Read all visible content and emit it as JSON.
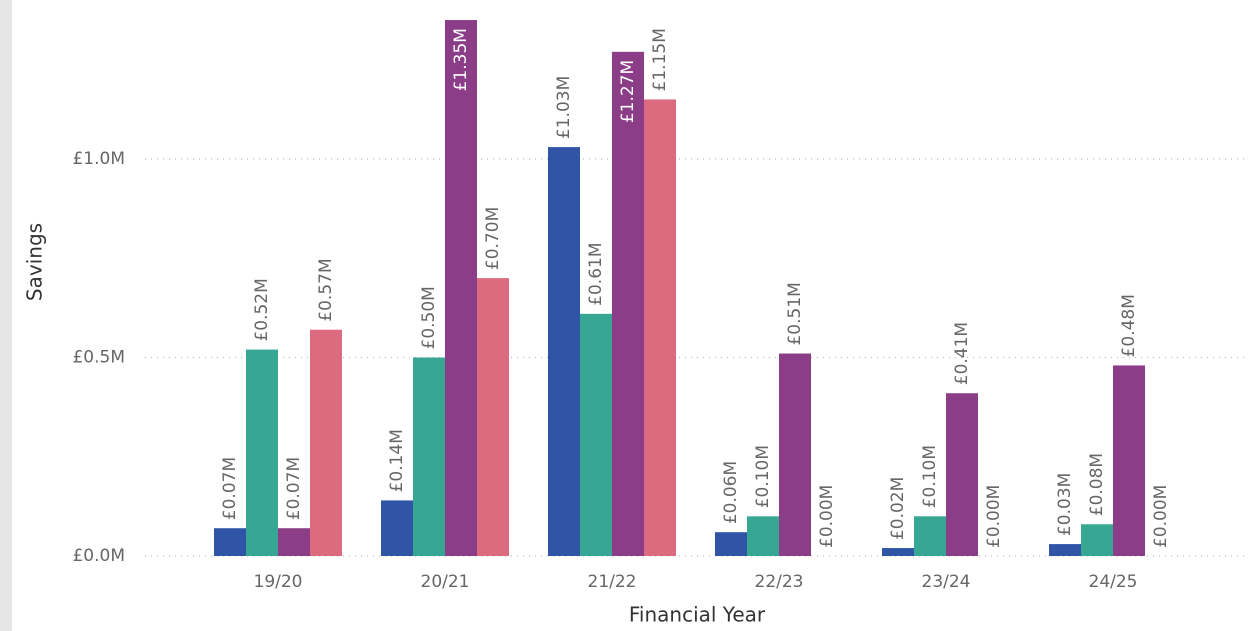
{
  "chart_data": {
    "type": "bar",
    "x_label": "Financial Year",
    "y_label": "Savings",
    "categories": [
      "19/20",
      "20/21",
      "21/22",
      "22/23",
      "23/24",
      "24/25"
    ],
    "series": [
      {
        "color": "#3155a6",
        "values": [
          0.07,
          0.14,
          1.03,
          0.06,
          0.02,
          0.03
        ],
        "value_labels": [
          "£0.07M",
          "£0.14M",
          "£1.03M",
          "£0.06M",
          "£0.02M",
          "£0.03M"
        ]
      },
      {
        "color": "#37a794",
        "values": [
          0.52,
          0.5,
          0.61,
          0.1,
          0.1,
          0.08
        ],
        "value_labels": [
          "£0.52M",
          "£0.50M",
          "£0.61M",
          "£0.10M",
          "£0.10M",
          "£0.08M"
        ]
      },
      {
        "color": "#8b3d88",
        "values": [
          0.07,
          1.35,
          1.27,
          0.51,
          0.41,
          0.48
        ],
        "value_labels": [
          "£0.07M",
          "£1.35M",
          "£1.27M",
          "£0.51M",
          "£0.41M",
          "£0.48M"
        ]
      },
      {
        "color": "#dd6b7f",
        "values": [
          0.57,
          0.7,
          1.15,
          0.0,
          0.0,
          0.0
        ],
        "value_labels": [
          "£0.57M",
          "£0.70M",
          "£1.15M",
          "£0.00M",
          "£0.00M",
          "£0.00M"
        ]
      }
    ],
    "ylim": [
      0,
      1.4
    ],
    "yticks": [
      {
        "value": 0,
        "label": "£0.0M"
      },
      {
        "value": 0.5,
        "label": "£0.5M"
      },
      {
        "value": 1.0,
        "label": "£1.0M"
      }
    ],
    "grid": true
  }
}
